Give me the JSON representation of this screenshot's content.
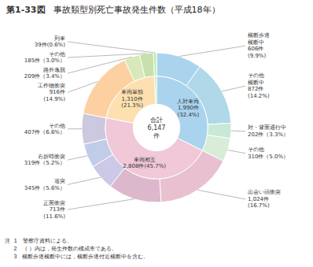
{
  "chart_data": [
    {
      "type": "pie",
      "title": "事故類型別死亡事故発生件数（平成18年）",
      "annotations": [
        "第1-33図",
        "合計\n6,147\n件",
        "注  1   警察庁資料による。",
        "     2   （ ）内は，発生件数の構成率である。",
        "     3   横断歩道横断中には，横断歩道付近横断中を含む。"
      ],
      "categories": [
        "人対車両\n1,990件\n(32.4%)",
        "車両相互\n2,808件(45.7%)",
        "車両単独\n1,310件\n(21.3%)",
        null
      ],
      "values": [
        1990,
        2808,
        1310,
        39
      ],
      "colors": [
        "#aad4ee",
        "#f0c8d8",
        "#fce0b0",
        "#c8e8b0"
      ]
    },
    {
      "type": "pie",
      "categories": [
        "横断歩道\n横断中\n606件\n(9.9%)",
        "その他\n横断中\n872件\n(14.2%)",
        "対・背面通行中\n202件（3.3%）",
        "その他\n310件（5.0%）",
        "出会い頭衝突\n1,024件\n(16.7%)",
        "正面衝突\n713件\n(11.6%)",
        "追突\n345件（5.6%）",
        "右折時衝突\n319件（5.2%）",
        "その他\n407件（6.6%）",
        "工作物衝突\n916件\n(14.9%)",
        "路外逸脱\n209件（3.4%）",
        "その他\n185件（3.0%）",
        "列車\n39件(0.6%)"
      ],
      "values": [
        606,
        872,
        202,
        310,
        1024,
        713,
        345,
        319,
        407,
        916,
        209,
        185,
        39
      ],
      "colors": [
        "#aad4ee",
        "#b0d8e8",
        "#c8e8d8",
        "#d8ecd8",
        "#e8c0d0",
        "#ddb8cc",
        "#ccc8e8",
        "#c0cce8",
        "#ccc8e0",
        "#fcd0a0",
        "#d8e8b8",
        "#c8e0b0",
        "#c0e8a8"
      ]
    }
  ]
}
